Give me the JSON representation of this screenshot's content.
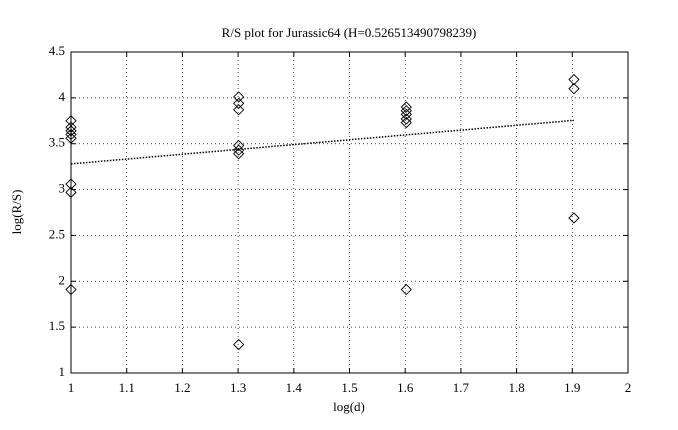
{
  "chart_data": {
    "type": "scatter",
    "title": "R/S plot for Jurassic64 (H=0.526513490798239)",
    "xlabel": "log(d)",
    "ylabel": "log(R/S)",
    "xlim": [
      1,
      2
    ],
    "xticks": [
      1,
      1.1,
      1.2,
      1.3,
      1.4,
      1.5,
      1.6,
      1.7,
      1.8,
      1.9,
      2
    ],
    "ylim": [
      1,
      4.5
    ],
    "yticks": [
      1,
      1.5,
      2,
      2.5,
      3,
      3.5,
      4,
      4.5
    ],
    "grid": true,
    "series": [
      {
        "marker": "diamond",
        "color": "#000000",
        "x": [
          1,
          1,
          1,
          1,
          1,
          1,
          1,
          1,
          1.301,
          1.301,
          1.301,
          1.301,
          1.301,
          1.301,
          1.301,
          1.602,
          1.602,
          1.602,
          1.602,
          1.602,
          1.602,
          1.903,
          1.903,
          1.903
        ],
        "values": [
          3.75,
          3.68,
          3.64,
          3.6,
          3.56,
          3.06,
          2.97,
          1.91,
          4.01,
          3.94,
          3.87,
          3.48,
          3.43,
          3.39,
          1.31,
          3.9,
          3.86,
          3.82,
          3.77,
          3.73,
          1.91,
          4.2,
          4.1,
          2.69
        ]
      },
      {
        "line": "dotted",
        "color": "#000000",
        "x": [
          1,
          1.903
        ],
        "values": [
          3.28,
          3.755
        ]
      }
    ]
  }
}
